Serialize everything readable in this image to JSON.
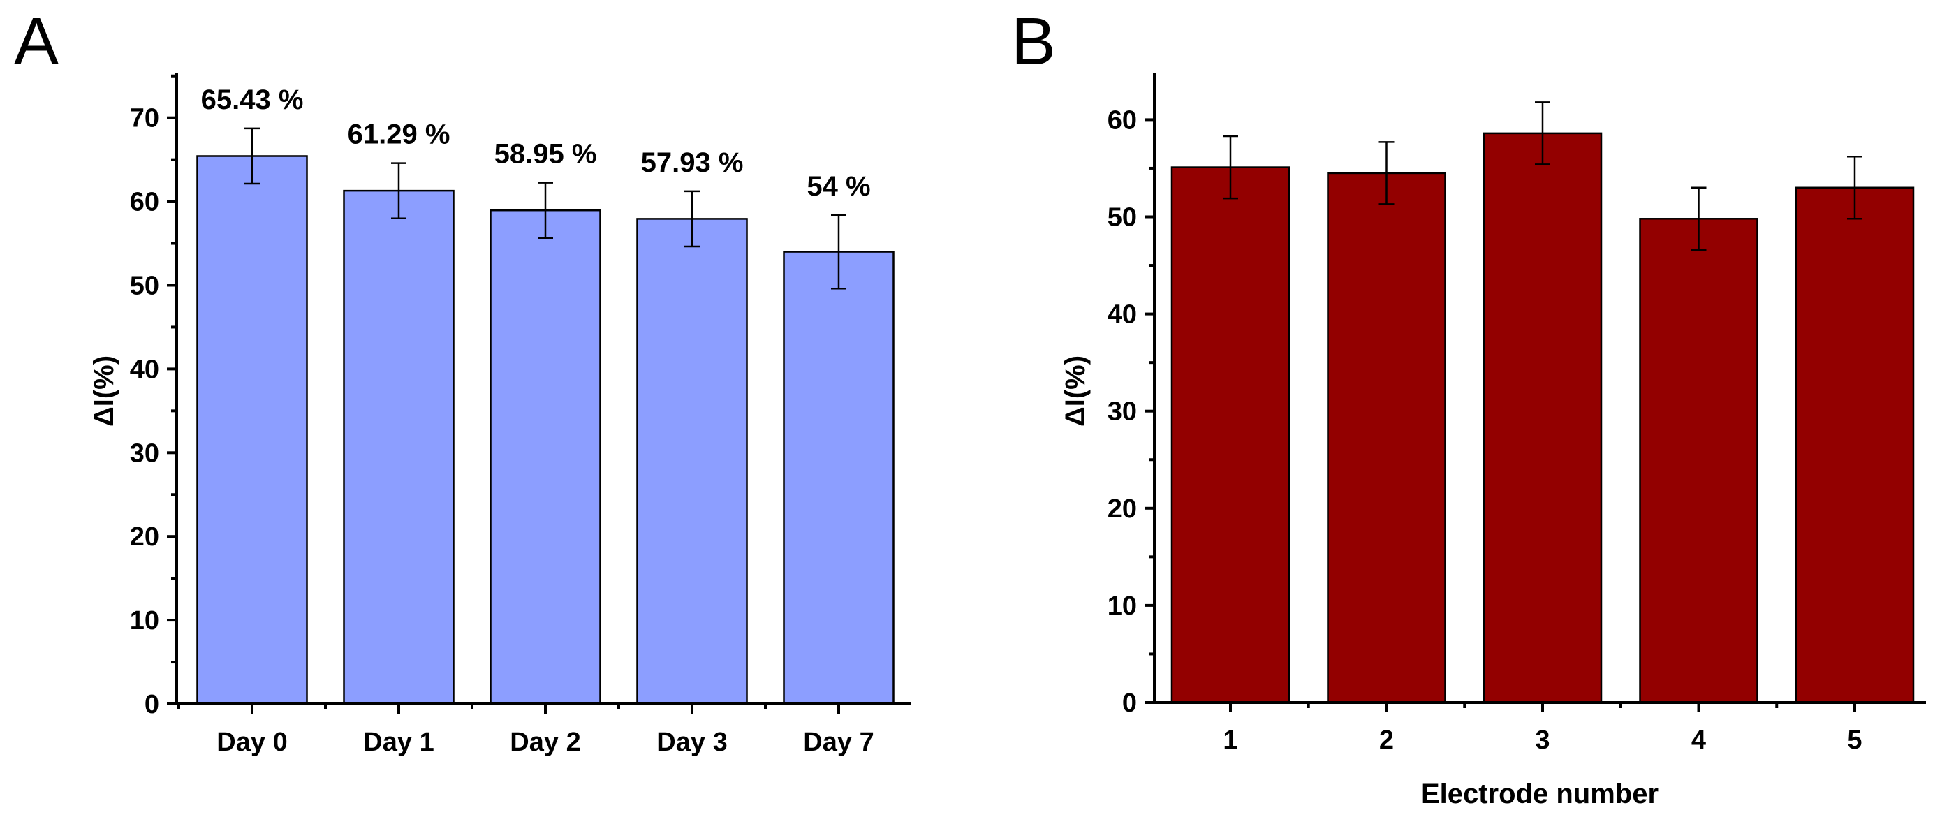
{
  "chart_data": [
    {
      "panel": "A",
      "type": "bar",
      "categories": [
        "Day 0",
        "Day 1",
        "Day 2",
        "Day 3",
        "Day 7"
      ],
      "values": [
        65.43,
        61.29,
        58.95,
        57.93,
        54
      ],
      "errors": [
        3.3,
        3.3,
        3.3,
        3.3,
        4.4
      ],
      "data_labels": [
        "65.43 %",
        "61.29 %",
        "58.95 %",
        "57.93 %",
        "54 %"
      ],
      "xlabel": "",
      "ylabel": "ΔI(%)",
      "ylim": [
        0,
        75
      ],
      "yticks": [
        0,
        10,
        20,
        30,
        40,
        50,
        60,
        70
      ],
      "bar_color": "#8c9eff"
    },
    {
      "panel": "B",
      "type": "bar",
      "categories": [
        "1",
        "2",
        "3",
        "4",
        "5"
      ],
      "values": [
        55.1,
        54.5,
        58.6,
        49.8,
        53
      ],
      "errors": [
        3.2,
        3.2,
        3.2,
        3.2,
        3.2
      ],
      "xlabel": "Electrode number",
      "ylabel": "ΔI(%)",
      "ylim": [
        0,
        65
      ],
      "yticks": [
        0,
        10,
        20,
        30,
        40,
        50,
        60
      ],
      "bar_color": "#930000"
    }
  ]
}
